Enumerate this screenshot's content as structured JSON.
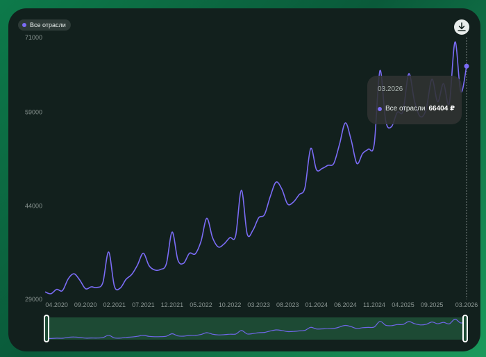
{
  "legend": {
    "label": "Все отрасли",
    "color": "#7b6cf6"
  },
  "tooltip": {
    "date": "03.2026",
    "series": "Все отрасли",
    "value": "66404 ₽"
  },
  "chart_data": {
    "type": "line",
    "grid": false,
    "legend_position": "top-left",
    "yticks": [
      29000,
      44000,
      59000,
      71000
    ],
    "ylim": [
      29000,
      71000
    ],
    "xticks": [
      "04.2020",
      "09.2020",
      "02.2021",
      "07.2021",
      "12.2021",
      "05.2022",
      "10.2022",
      "03.2023",
      "08.2023",
      "01.2024",
      "06.2024",
      "11.2024",
      "04.2025",
      "09.2025",
      "03.2026"
    ],
    "series": [
      {
        "name": "Все отрасли",
        "color": "#7b6cf6",
        "x": [
          "02.2020",
          "03.2020",
          "04.2020",
          "05.2020",
          "06.2020",
          "07.2020",
          "08.2020",
          "09.2020",
          "10.2020",
          "11.2020",
          "12.2020",
          "01.2021",
          "02.2021",
          "03.2021",
          "04.2021",
          "05.2021",
          "06.2021",
          "07.2021",
          "08.2021",
          "09.2021",
          "10.2021",
          "11.2021",
          "12.2021",
          "01.2022",
          "02.2022",
          "03.2022",
          "04.2022",
          "05.2022",
          "06.2022",
          "07.2022",
          "08.2022",
          "09.2022",
          "10.2022",
          "11.2022",
          "12.2022",
          "01.2023",
          "02.2023",
          "03.2023",
          "04.2023",
          "05.2023",
          "06.2023",
          "07.2023",
          "08.2023",
          "09.2023",
          "10.2023",
          "11.2023",
          "12.2023",
          "01.2024",
          "02.2024",
          "03.2024",
          "04.2024",
          "05.2024",
          "06.2024",
          "07.2024",
          "08.2024",
          "09.2024",
          "10.2024",
          "11.2024",
          "12.2024",
          "01.2025",
          "02.2025",
          "03.2025",
          "04.2025",
          "05.2025",
          "06.2025",
          "07.2025",
          "08.2025",
          "09.2025",
          "10.2025",
          "11.2025",
          "12.2025",
          "01.2026",
          "02.2026",
          "03.2026"
        ],
        "values": [
          30200,
          29900,
          30600,
          30400,
          32300,
          33100,
          32100,
          30700,
          31000,
          30900,
          31700,
          36600,
          31100,
          30800,
          32200,
          33000,
          34500,
          36400,
          34400,
          33700,
          33800,
          34700,
          39800,
          35300,
          34800,
          36400,
          36300,
          38300,
          42000,
          38900,
          37400,
          37900,
          38900,
          39200,
          46500,
          39500,
          40100,
          42100,
          42600,
          45500,
          47800,
          46700,
          44300,
          44600,
          45800,
          46900,
          53200,
          49800,
          50000,
          50500,
          50800,
          53900,
          57300,
          54600,
          50800,
          52400,
          53100,
          53900,
          65700,
          57600,
          56700,
          59000,
          59200,
          65200,
          60700,
          58300,
          59500,
          64300,
          60700,
          63600,
          60400,
          70300,
          62300,
          66404
        ]
      }
    ]
  }
}
